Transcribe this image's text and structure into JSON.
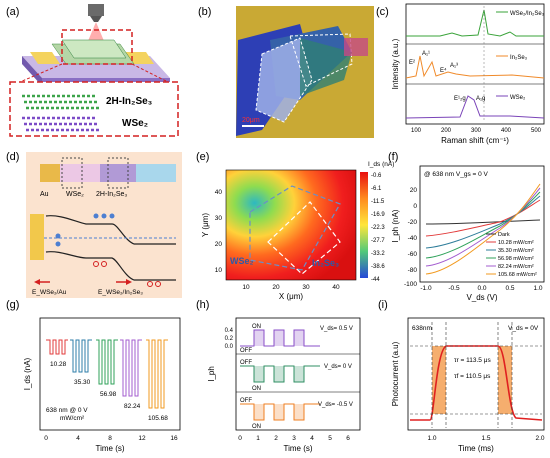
{
  "panels": {
    "a": {
      "label": "(a)",
      "material_top": "2H-In₂Se₃",
      "material_bottom": "WSe₂"
    },
    "b": {
      "label": "(b)",
      "material": "WSe₂/In₂Se₃",
      "scalebar": "20μm"
    },
    "c": {
      "label": "(c)",
      "xlabel": "Raman shift (cm⁻¹)",
      "ylabel": "Intensity (a.u.)",
      "xticks": [
        "100",
        "200",
        "300",
        "400",
        "500"
      ],
      "legend": [
        "WSe₂/In₂Se₃",
        "In₂Se₃",
        "WSe₂"
      ],
      "peaks_in2se3": [
        "E²",
        "A₁¹",
        "E⁴",
        "A₁³"
      ],
      "peaks_wse2": [
        "E¹₂g",
        "A₁g"
      ],
      "colors": [
        "#3aa33a",
        "#f08a2a",
        "#7a44b8"
      ]
    },
    "d": {
      "label": "(d)",
      "au": "Au",
      "wse2": "WSe₂",
      "in2se3": "2H-In₂Se₃",
      "barrier1": "E_WSe₂/Au",
      "barrier2": "E_WSe₂/In₂Se₃"
    },
    "e": {
      "label": "(e)",
      "xlabel": "X (μm)",
      "ylabel": "Y (μm)",
      "cbar_title": "I_ds (nA)",
      "cbar_ticks": [
        "-0.6",
        "-6.1",
        "-11.5",
        "-16.9",
        "-22.3",
        "-27.7",
        "-33.2",
        "-38.6",
        "-44"
      ],
      "xticks": [
        "10",
        "20",
        "30",
        "40"
      ],
      "yticks": [
        "10",
        "20",
        "30",
        "40"
      ],
      "wse2": "WSe₂",
      "in2se3": "In₂Se₃"
    },
    "f": {
      "label": "(f)",
      "condition": "@ 638 nm  V_gs = 0 V",
      "xlabel": "V_ds (V)",
      "ylabel": "I_ph (nA)",
      "xticks": [
        "-1.0",
        "-0.5",
        "0.0",
        "0.5",
        "1.0"
      ],
      "yticks": [
        "20",
        "0",
        "-20",
        "-40",
        "-60",
        "-80",
        "-100"
      ],
      "legend": [
        "Dark",
        "10.28 mW/cm²",
        "35.30 mW/cm²",
        "56.98 mW/cm²",
        "82.24 mW/cm²",
        "105.68 mW/cm²"
      ],
      "colors": [
        "#333333",
        "#e23b3b",
        "#2e7d9a",
        "#2fa25a",
        "#a35ccf",
        "#f29a1f"
      ]
    },
    "g": {
      "label": "(g)",
      "xlabel": "Time (s)",
      "ylabel": "I_ds (nA)",
      "xticks": [
        "0",
        "4",
        "8",
        "12",
        "16"
      ],
      "note1": "638 nm @ 0 V",
      "note2": "mW/cm²",
      "values": [
        "10.28",
        "35.30",
        "56.98",
        "82.24",
        "105.68"
      ]
    },
    "h": {
      "label": "(h)",
      "xlabel": "Time (s)",
      "ylabel": "I_ph",
      "xticks": [
        "0",
        "1",
        "2",
        "3",
        "4",
        "5",
        "6"
      ],
      "yticks": [
        "0.4",
        "0.2",
        "0.0"
      ],
      "on": "ON",
      "off": "OFF",
      "vds": [
        "V_ds= 0.5 V",
        "V_ds= 0 V",
        "V_ds= -0.5 V"
      ]
    },
    "i": {
      "label": "(i)",
      "wavelength": "638nm",
      "vds": "V_ds = 0V",
      "xlabel": "Time (ms)",
      "ylabel": "Photocurrent (a.u)",
      "xticks": [
        "1.0",
        "1.5",
        "2.0"
      ],
      "tau_r": "τr = 113.5 μs",
      "tau_f": "τf = 110.5 μs"
    }
  }
}
